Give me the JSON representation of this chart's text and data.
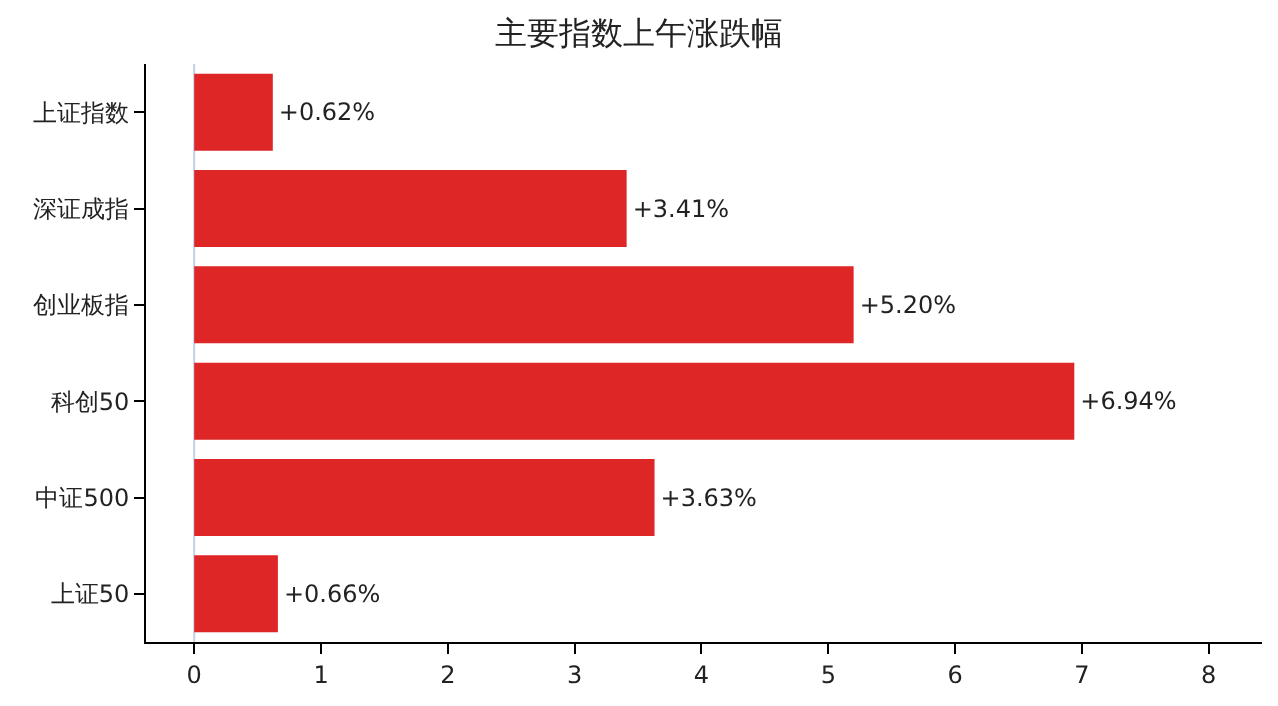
{
  "chart_data": {
    "type": "bar",
    "orientation": "horizontal",
    "title": "主要指数上午涨跌幅",
    "categories": [
      "上证指数",
      "深证成指",
      "创业板指",
      "科创50",
      "中证500",
      "上证50"
    ],
    "values": [
      0.62,
      3.41,
      5.2,
      6.94,
      3.63,
      0.66
    ],
    "value_labels": [
      "+0.62%",
      "+3.41%",
      "+5.20%",
      "+6.94%",
      "+3.63%",
      "+0.66%"
    ],
    "color": "#de2626",
    "xlim": [
      -0.38,
      8.42
    ],
    "xticks": [
      0,
      1,
      2,
      3,
      4,
      5,
      6,
      7,
      8
    ],
    "ref_lines": [
      {
        "axis": "x",
        "value": 0,
        "color": "#c5d0e6"
      }
    ],
    "grid": false
  }
}
